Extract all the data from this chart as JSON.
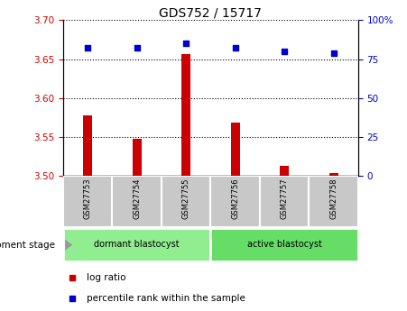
{
  "title": "GDS752 / 15717",
  "samples": [
    "GSM27753",
    "GSM27754",
    "GSM27755",
    "GSM27756",
    "GSM27757",
    "GSM27758"
  ],
  "log_ratios": [
    3.578,
    3.548,
    3.657,
    3.568,
    3.513,
    3.503
  ],
  "percentile_ranks": [
    82,
    82,
    85,
    82,
    80,
    79
  ],
  "ylim_left": [
    3.5,
    3.7
  ],
  "ylim_right": [
    0,
    100
  ],
  "yticks_left": [
    3.5,
    3.55,
    3.6,
    3.65,
    3.7
  ],
  "yticks_right": [
    0,
    25,
    50,
    75,
    100
  ],
  "ytick_labels_right": [
    "0",
    "25",
    "50",
    "75",
    "100%"
  ],
  "groups": [
    {
      "label": "dormant blastocyst",
      "samples": [
        0,
        1,
        2
      ],
      "color": "#90EE90"
    },
    {
      "label": "active blastocyst",
      "samples": [
        3,
        4,
        5
      ],
      "color": "#66DD66"
    }
  ],
  "group_label": "development stage",
  "bar_color": "#CC0000",
  "marker_color": "#0000CC",
  "bar_width": 0.18,
  "tick_color_left": "#CC0000",
  "tick_color_right": "#0000CC",
  "grid_color": "black",
  "sample_box_color": "#C8C8C8",
  "legend_items": [
    {
      "label": "log ratio",
      "color": "#CC0000"
    },
    {
      "label": "percentile rank within the sample",
      "color": "#0000CC"
    }
  ]
}
